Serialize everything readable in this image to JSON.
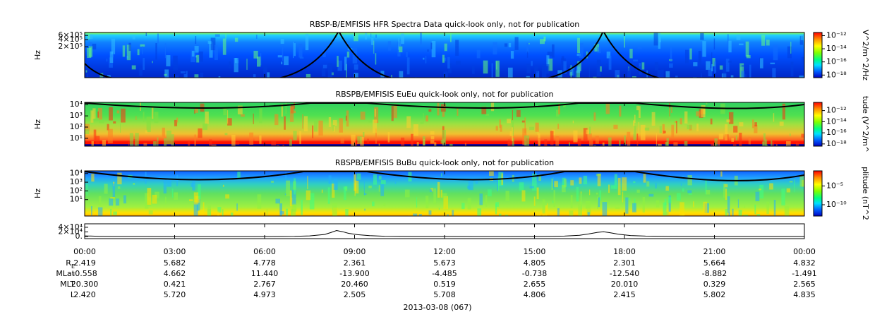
{
  "chart_data": [
    {
      "type": "spectrogram",
      "title": "RBSP-B/EMFISIS  HFR Spectra Data quick-look only, not for publication",
      "ylabel": "Hz",
      "ylog": true,
      "ylim": [
        10000,
        800000
      ],
      "yticks": [
        {
          "value": 600000,
          "label": "6×10⁵"
        },
        {
          "value": 400000,
          "label": "4×10⁵"
        },
        {
          "value": 200000,
          "label": "2×10⁵"
        }
      ],
      "xlim": [
        0,
        24
      ],
      "colorbar": {
        "label": "V^2/m^2/Hz",
        "log": true,
        "clim": [
          4e-19,
          3e-12
        ],
        "ticks": [
          {
            "value": 1e-12,
            "label": "10⁻¹²"
          },
          {
            "value": 1e-14,
            "label": "10⁻¹⁴"
          },
          {
            "value": 1e-16,
            "label": "10⁻¹⁶"
          },
          {
            "value": 1e-18,
            "label": "10⁻¹⁸"
          }
        ]
      }
    },
    {
      "type": "spectrogram",
      "title": "RBSPB/EMFISIS  EuEu quick-look only, not for publication",
      "ylabel": "Hz",
      "ylog": true,
      "ylim": [
        2,
        16000
      ],
      "yticks": [
        {
          "value": 10000,
          "label": "10⁴"
        },
        {
          "value": 1000,
          "label": "10³"
        },
        {
          "value": 100,
          "label": "10²"
        },
        {
          "value": 10,
          "label": "10¹"
        }
      ],
      "xlim": [
        0,
        24
      ],
      "colorbar": {
        "label": "tude (V^2/m^",
        "log": true,
        "clim": [
          4e-19,
          3e-11
        ],
        "ticks": [
          {
            "value": 1e-12,
            "label": "10⁻¹²"
          },
          {
            "value": 1e-14,
            "label": "10⁻¹⁴"
          },
          {
            "value": 1e-16,
            "label": "10⁻¹⁶"
          },
          {
            "value": 1e-18,
            "label": "10⁻¹⁸"
          }
        ]
      }
    },
    {
      "type": "spectrogram",
      "title": "RBSPB/EMFISIS  BuBu quick-look only, not for publication",
      "ylabel": "Hz",
      "ylog": true,
      "ylim": [
        0.13,
        20000
      ],
      "yticks": [
        {
          "value": 10000,
          "label": "10⁴"
        },
        {
          "value": 1000,
          "label": "10³"
        },
        {
          "value": 100,
          "label": "10²"
        },
        {
          "value": 10,
          "label": "10¹"
        }
      ],
      "xlim": [
        0,
        24
      ],
      "colorbar": {
        "label": "plitude (nT^2",
        "log": true,
        "clim": [
          1e-13,
          0.1
        ],
        "ticks": [
          {
            "value": 1e-05,
            "label": "10⁻⁵"
          },
          {
            "value": 1e-10,
            "label": "10⁻¹⁰"
          }
        ]
      }
    },
    {
      "type": "line",
      "xlim": [
        0,
        24
      ],
      "ylim": [
        -9000,
        55000
      ],
      "yticks": [
        {
          "value": 40000,
          "label": "4×10⁴"
        },
        {
          "value": 20000,
          "label": "2×10⁴"
        },
        {
          "value": 0,
          "label": "0."
        }
      ],
      "xticks": [
        {
          "value": 0,
          "label": "00:00"
        },
        {
          "value": 3,
          "label": "03:00"
        },
        {
          "value": 6,
          "label": "06:00"
        },
        {
          "value": 9,
          "label": "09:00"
        },
        {
          "value": 12,
          "label": "12:00"
        },
        {
          "value": 15,
          "label": "15:00"
        },
        {
          "value": 18,
          "label": "18:00"
        },
        {
          "value": 21,
          "label": "21:00"
        },
        {
          "value": 24,
          "label": "00:00"
        }
      ],
      "series": [
        {
          "color": "#000000",
          "x": [
            0,
            0.5,
            1,
            2,
            3,
            4,
            5,
            6,
            7,
            7.5,
            8,
            8.2,
            8.4,
            8.6,
            8.8,
            9.1,
            9.5,
            10,
            11,
            12,
            13,
            14,
            15,
            15.5,
            16,
            16.5,
            16.8,
            17.1,
            17.3,
            17.5,
            17.8,
            18.2,
            18.7,
            19.5,
            20.5,
            22,
            24
          ],
          "values": [
            3000,
            1200,
            600,
            300,
            200,
            200,
            200,
            250,
            900,
            3000,
            9000,
            17000,
            26000,
            21000,
            14000,
            8000,
            4000,
            1500,
            500,
            300,
            250,
            250,
            400,
            900,
            2000,
            5500,
            11000,
            18000,
            21000,
            17000,
            10000,
            4500,
            2000,
            700,
            400,
            300,
            500
          ]
        }
      ]
    }
  ],
  "ephemeris": [
    {
      "label": "R",
      "subscript": "E",
      "values": [
        "2.419",
        "5.682",
        "4.778",
        "2.361",
        "5.673",
        "4.805",
        "2.301",
        "5.664",
        "4.832"
      ]
    },
    {
      "label": "MLat",
      "values": [
        "-0.558",
        "4.662",
        "11.440",
        "-13.900",
        "-4.485",
        "-0.738",
        "-12.540",
        "-8.882",
        "-1.491"
      ]
    },
    {
      "label": "MLT",
      "values": [
        "20.300",
        "0.421",
        "2.767",
        "20.460",
        "0.519",
        "2.655",
        "20.010",
        "0.329",
        "2.565"
      ]
    },
    {
      "label": "L",
      "values": [
        "2.420",
        "5.720",
        "4.973",
        "2.505",
        "5.708",
        "4.806",
        "2.415",
        "5.802",
        "4.835"
      ]
    }
  ],
  "date": "2013-03-08 (067)"
}
